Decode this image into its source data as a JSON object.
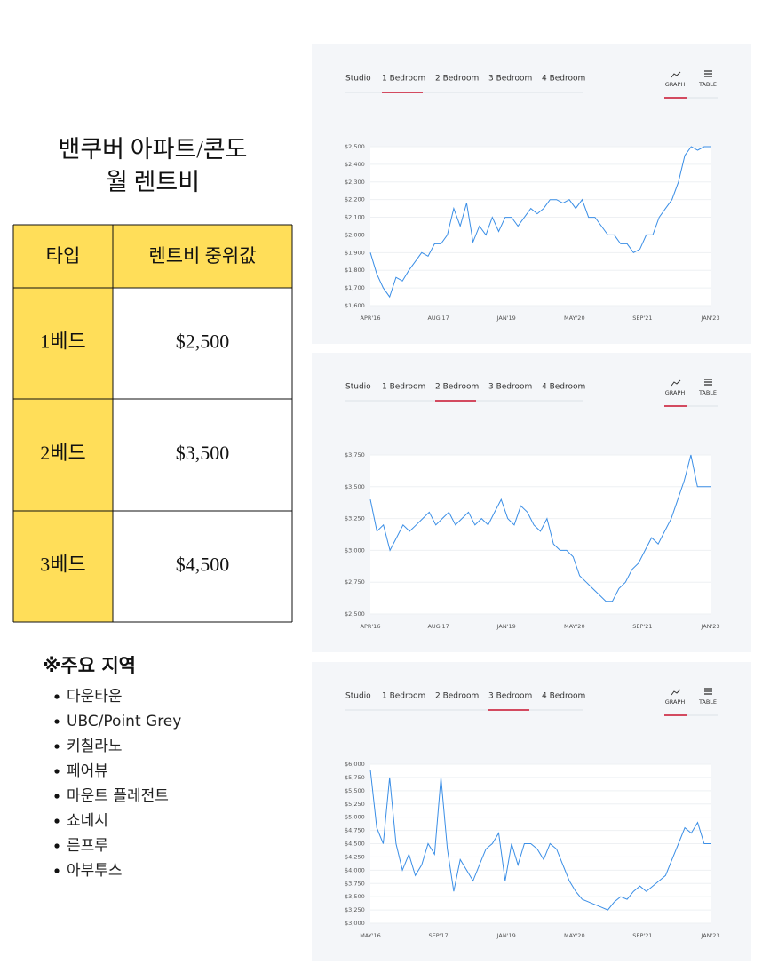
{
  "heading": {
    "lines": [
      "밴쿠버 아파트/콘도",
      "월 렌트비"
    ]
  },
  "table": {
    "header": [
      "타입",
      "렌트비 중위값"
    ],
    "rows": [
      [
        "1베드",
        "$2,500"
      ],
      [
        "2베드",
        "$3,500"
      ],
      [
        "3베드",
        "$4,500"
      ]
    ]
  },
  "regions": {
    "title": "※주요 지역",
    "items": [
      "다운타운",
      "UBC/Point Grey",
      "키칠라노",
      "페어뷰",
      "마운트 플레전트",
      "쇼네시",
      "른프루",
      "아부투스"
    ]
  },
  "chart_data": [
    {
      "type": "line",
      "tabs": [
        "Studio",
        "1 Bedroom",
        "2 Bedroom",
        "3 Bedroom",
        "4 Bedroom"
      ],
      "active_tab": 1,
      "views": [
        "GRAPH",
        "TABLE"
      ],
      "x_labels": [
        "APR'16",
        "AUG'17",
        "JAN'19",
        "MAY'20",
        "SEP'21",
        "JAN'23"
      ],
      "series": [
        {
          "color": "#3a8ee6",
          "values": [
            1900,
            1780,
            1700,
            1650,
            1760,
            1740,
            1800,
            1850,
            1900,
            1880,
            1950,
            1950,
            2000,
            2150,
            2050,
            2180,
            1960,
            2050,
            2000,
            2100,
            2020,
            2100,
            2100,
            2050,
            2100,
            2150,
            2120,
            2150,
            2200,
            2200,
            2180,
            2200,
            2150,
            2200,
            2100,
            2100,
            2050,
            2000,
            2000,
            1950,
            1950,
            1900,
            1920,
            2000,
            2000,
            2100,
            2150,
            2200,
            2300,
            2450,
            2500,
            2480,
            2500,
            2500
          ]
        }
      ],
      "ylim": [
        1600,
        2500
      ],
      "yticks": [
        {
          "value": 1600,
          "label": "$1,600"
        },
        {
          "value": 1700,
          "label": "$1,700"
        },
        {
          "value": 1800,
          "label": "$1,800"
        },
        {
          "value": 1900,
          "label": "$1,900"
        },
        {
          "value": 2000,
          "label": "$2,000"
        },
        {
          "value": 2100,
          "label": "$2,100"
        },
        {
          "value": 2200,
          "label": "$2,200"
        },
        {
          "value": 2300,
          "label": "$2,300"
        },
        {
          "value": 2400,
          "label": "$2,400"
        },
        {
          "value": 2500,
          "label": "$2,500"
        }
      ],
      "grid": true
    },
    {
      "type": "line",
      "tabs": [
        "Studio",
        "1 Bedroom",
        "2 Bedroom",
        "3 Bedroom",
        "4 Bedroom"
      ],
      "active_tab": 2,
      "views": [
        "GRAPH",
        "TABLE"
      ],
      "x_labels": [
        "APR'16",
        "AUG'17",
        "JAN'19",
        "MAY'20",
        "SEP'21",
        "JAN'23"
      ],
      "series": [
        {
          "color": "#3a8ee6",
          "values": [
            3400,
            3150,
            3200,
            3000,
            3100,
            3200,
            3150,
            3200,
            3250,
            3300,
            3200,
            3250,
            3300,
            3200,
            3250,
            3300,
            3200,
            3250,
            3200,
            3300,
            3400,
            3250,
            3200,
            3350,
            3300,
            3200,
            3150,
            3250,
            3050,
            3000,
            3000,
            2950,
            2800,
            2750,
            2700,
            2650,
            2600,
            2600,
            2700,
            2750,
            2850,
            2900,
            3000,
            3100,
            3050,
            3150,
            3250,
            3400,
            3550,
            3750,
            3500,
            3500,
            3500
          ]
        }
      ],
      "ylim": [
        2500,
        3750
      ],
      "yticks": [
        {
          "value": 2500,
          "label": "$2,500"
        },
        {
          "value": 2750,
          "label": "$2,750"
        },
        {
          "value": 3000,
          "label": "$3,000"
        },
        {
          "value": 3250,
          "label": "$3,250"
        },
        {
          "value": 3500,
          "label": "$3,500"
        },
        {
          "value": 3750,
          "label": "$3,750"
        }
      ],
      "grid": true
    },
    {
      "type": "line",
      "tabs": [
        "Studio",
        "1 Bedroom",
        "2 Bedroom",
        "3 Bedroom",
        "4 Bedroom"
      ],
      "active_tab": 3,
      "views": [
        "GRAPH",
        "TABLE"
      ],
      "x_labels": [
        "MAY'16",
        "SEP'17",
        "JAN'19",
        "MAY'20",
        "SEP'21",
        "JAN'23"
      ],
      "series": [
        {
          "color": "#3a8ee6",
          "values": [
            5900,
            4800,
            4500,
            5750,
            4500,
            4000,
            4300,
            3900,
            4100,
            4500,
            4300,
            5750,
            4400,
            3600,
            4200,
            4000,
            3800,
            4100,
            4400,
            4500,
            4700,
            3800,
            4500,
            4100,
            4500,
            4500,
            4400,
            4200,
            4500,
            4400,
            4100,
            3800,
            3600,
            3450,
            3400,
            3350,
            3300,
            3250,
            3400,
            3500,
            3450,
            3600,
            3700,
            3600,
            3700,
            3800,
            3900,
            4200,
            4500,
            4800,
            4700,
            4900,
            4500,
            4500
          ]
        }
      ],
      "ylim": [
        3000,
        6000
      ],
      "yticks": [
        {
          "value": 3000,
          "label": "$3,000"
        },
        {
          "value": 3250,
          "label": "$3,250"
        },
        {
          "value": 3500,
          "label": "$3,500"
        },
        {
          "value": 3750,
          "label": "$3,750"
        },
        {
          "value": 4000,
          "label": "$4,000"
        },
        {
          "value": 4250,
          "label": "$4,250"
        },
        {
          "value": 4500,
          "label": "$4,500"
        },
        {
          "value": 4750,
          "label": "$4,750"
        },
        {
          "value": 5000,
          "label": "$5,000"
        },
        {
          "value": 5250,
          "label": "$5,250"
        },
        {
          "value": 5500,
          "label": "$5,500"
        },
        {
          "value": 5750,
          "label": "$5,750"
        },
        {
          "value": 6000,
          "label": "$6,000"
        }
      ],
      "grid": true
    }
  ]
}
